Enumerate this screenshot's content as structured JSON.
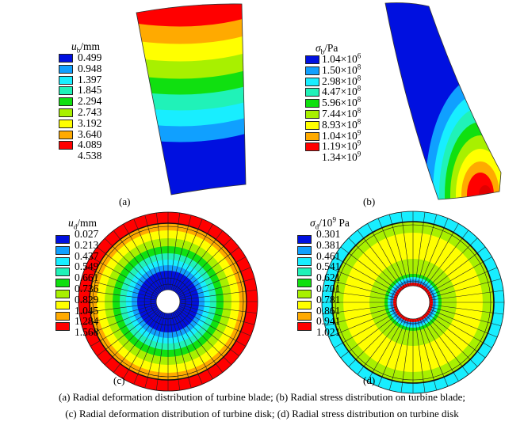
{
  "colors": [
    "#0010e0",
    "#10a0ff",
    "#18eeff",
    "#20f2b8",
    "#10e010",
    "#a8f000",
    "#ffff00",
    "#ffaa00",
    "#ff0000"
  ],
  "panels": {
    "a": {
      "label": "(a)",
      "legend_symbol": "u",
      "legend_sub": "b",
      "legend_unit": "/mm",
      "values": [
        "0.499",
        "0.948",
        "1.397",
        "1.845",
        "2.294",
        "2.743",
        "3.192",
        "3.640",
        "4.089",
        "4.538"
      ]
    },
    "b": {
      "label": "(b)",
      "legend_symbol": "σ",
      "legend_sub": "b",
      "legend_unit": "/Pa",
      "values": [
        [
          "1.04×10",
          "6"
        ],
        [
          "1.50×10",
          "8"
        ],
        [
          "2.98×10",
          "8"
        ],
        [
          "4.47×10",
          "8"
        ],
        [
          "5.96×10",
          "8"
        ],
        [
          "7.44×10",
          "8"
        ],
        [
          "8.93×10",
          "8"
        ],
        [
          "1.04×10",
          "9"
        ],
        [
          "1.19×10",
          "9"
        ],
        [
          "1.34×10",
          "9"
        ]
      ]
    },
    "c": {
      "label": "(c)",
      "legend_symbol": "u",
      "legend_sub": "d",
      "legend_unit": "/mm",
      "values": [
        "0.027",
        "0.213",
        "0.437",
        "0.549",
        "0.661",
        "0.736",
        "0.829",
        "1.045",
        "1.284",
        "1.568"
      ]
    },
    "d": {
      "label": "(d)",
      "legend_symbol": "σ",
      "legend_sub": "d",
      "legend_unit": "/10",
      "legend_sup": "9",
      "legend_unit2": " Pa",
      "values": [
        "0.301",
        "0.381",
        "0.461",
        "0.541",
        "0.621",
        "0.701",
        "0.781",
        "0.861",
        "0.941",
        "1.021"
      ]
    }
  },
  "caption": {
    "line1": "(a) Radial deformation distribution of turbine blade; (b) Radial stress distribution on turbine blade;",
    "line2": "(c) Radial deformation distribution of turbine disk; (d) Radial stress distribution on turbine disk"
  }
}
